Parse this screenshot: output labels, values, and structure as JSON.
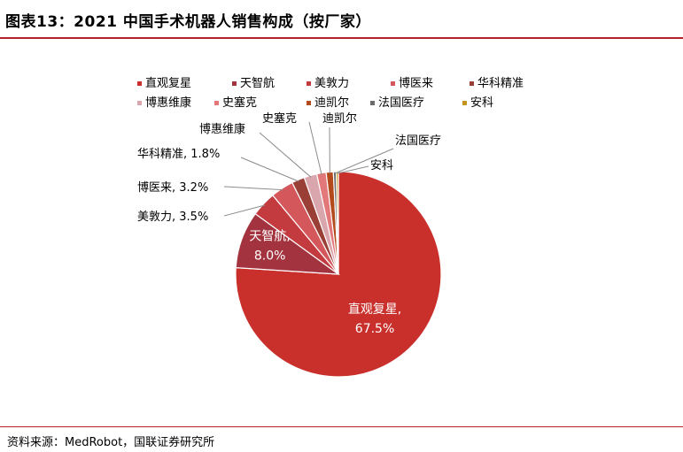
{
  "header": {
    "title": "图表13：2021 中国手术机器人销售构成（按厂家）"
  },
  "footer": {
    "source": "资料来源：MedRobot，国联证券研究所"
  },
  "colors": {
    "accent": "#b5202b"
  },
  "chart_data": {
    "type": "pie",
    "title": "",
    "legend_position": "top",
    "categories": [
      "直观复星",
      "天智航",
      "美敦力",
      "博医来",
      "华科精准",
      "博惠维康",
      "史塞克",
      "迪凯尔",
      "法国医疗",
      "安科"
    ],
    "values": [
      67.5,
      8.0,
      3.5,
      3.2,
      1.8,
      1.8,
      1.3,
      1.0,
      0.4,
      0.3
    ],
    "colors": [
      "#c9302c",
      "#a3343f",
      "#c33a3f",
      "#d4575b",
      "#9a3f35",
      "#d9a6ad",
      "#e3787a",
      "#b24a1c",
      "#6b6b6b",
      "#c4951e"
    ],
    "labels": [
      {
        "name": "直观复星",
        "value": "67.5%"
      },
      {
        "name": "天智航",
        "value": "8.0%"
      },
      {
        "name": "美敦力",
        "value": "3.5%"
      },
      {
        "name": "博医来",
        "value": "3.2%"
      },
      {
        "name": "华科精准",
        "value": "1.8%"
      },
      {
        "name": "博惠维康",
        "value": ""
      },
      {
        "name": "史塞克",
        "value": ""
      },
      {
        "name": "迪凯尔",
        "value": ""
      },
      {
        "name": "法国医疗",
        "value": ""
      },
      {
        "name": "安科",
        "value": ""
      }
    ]
  }
}
